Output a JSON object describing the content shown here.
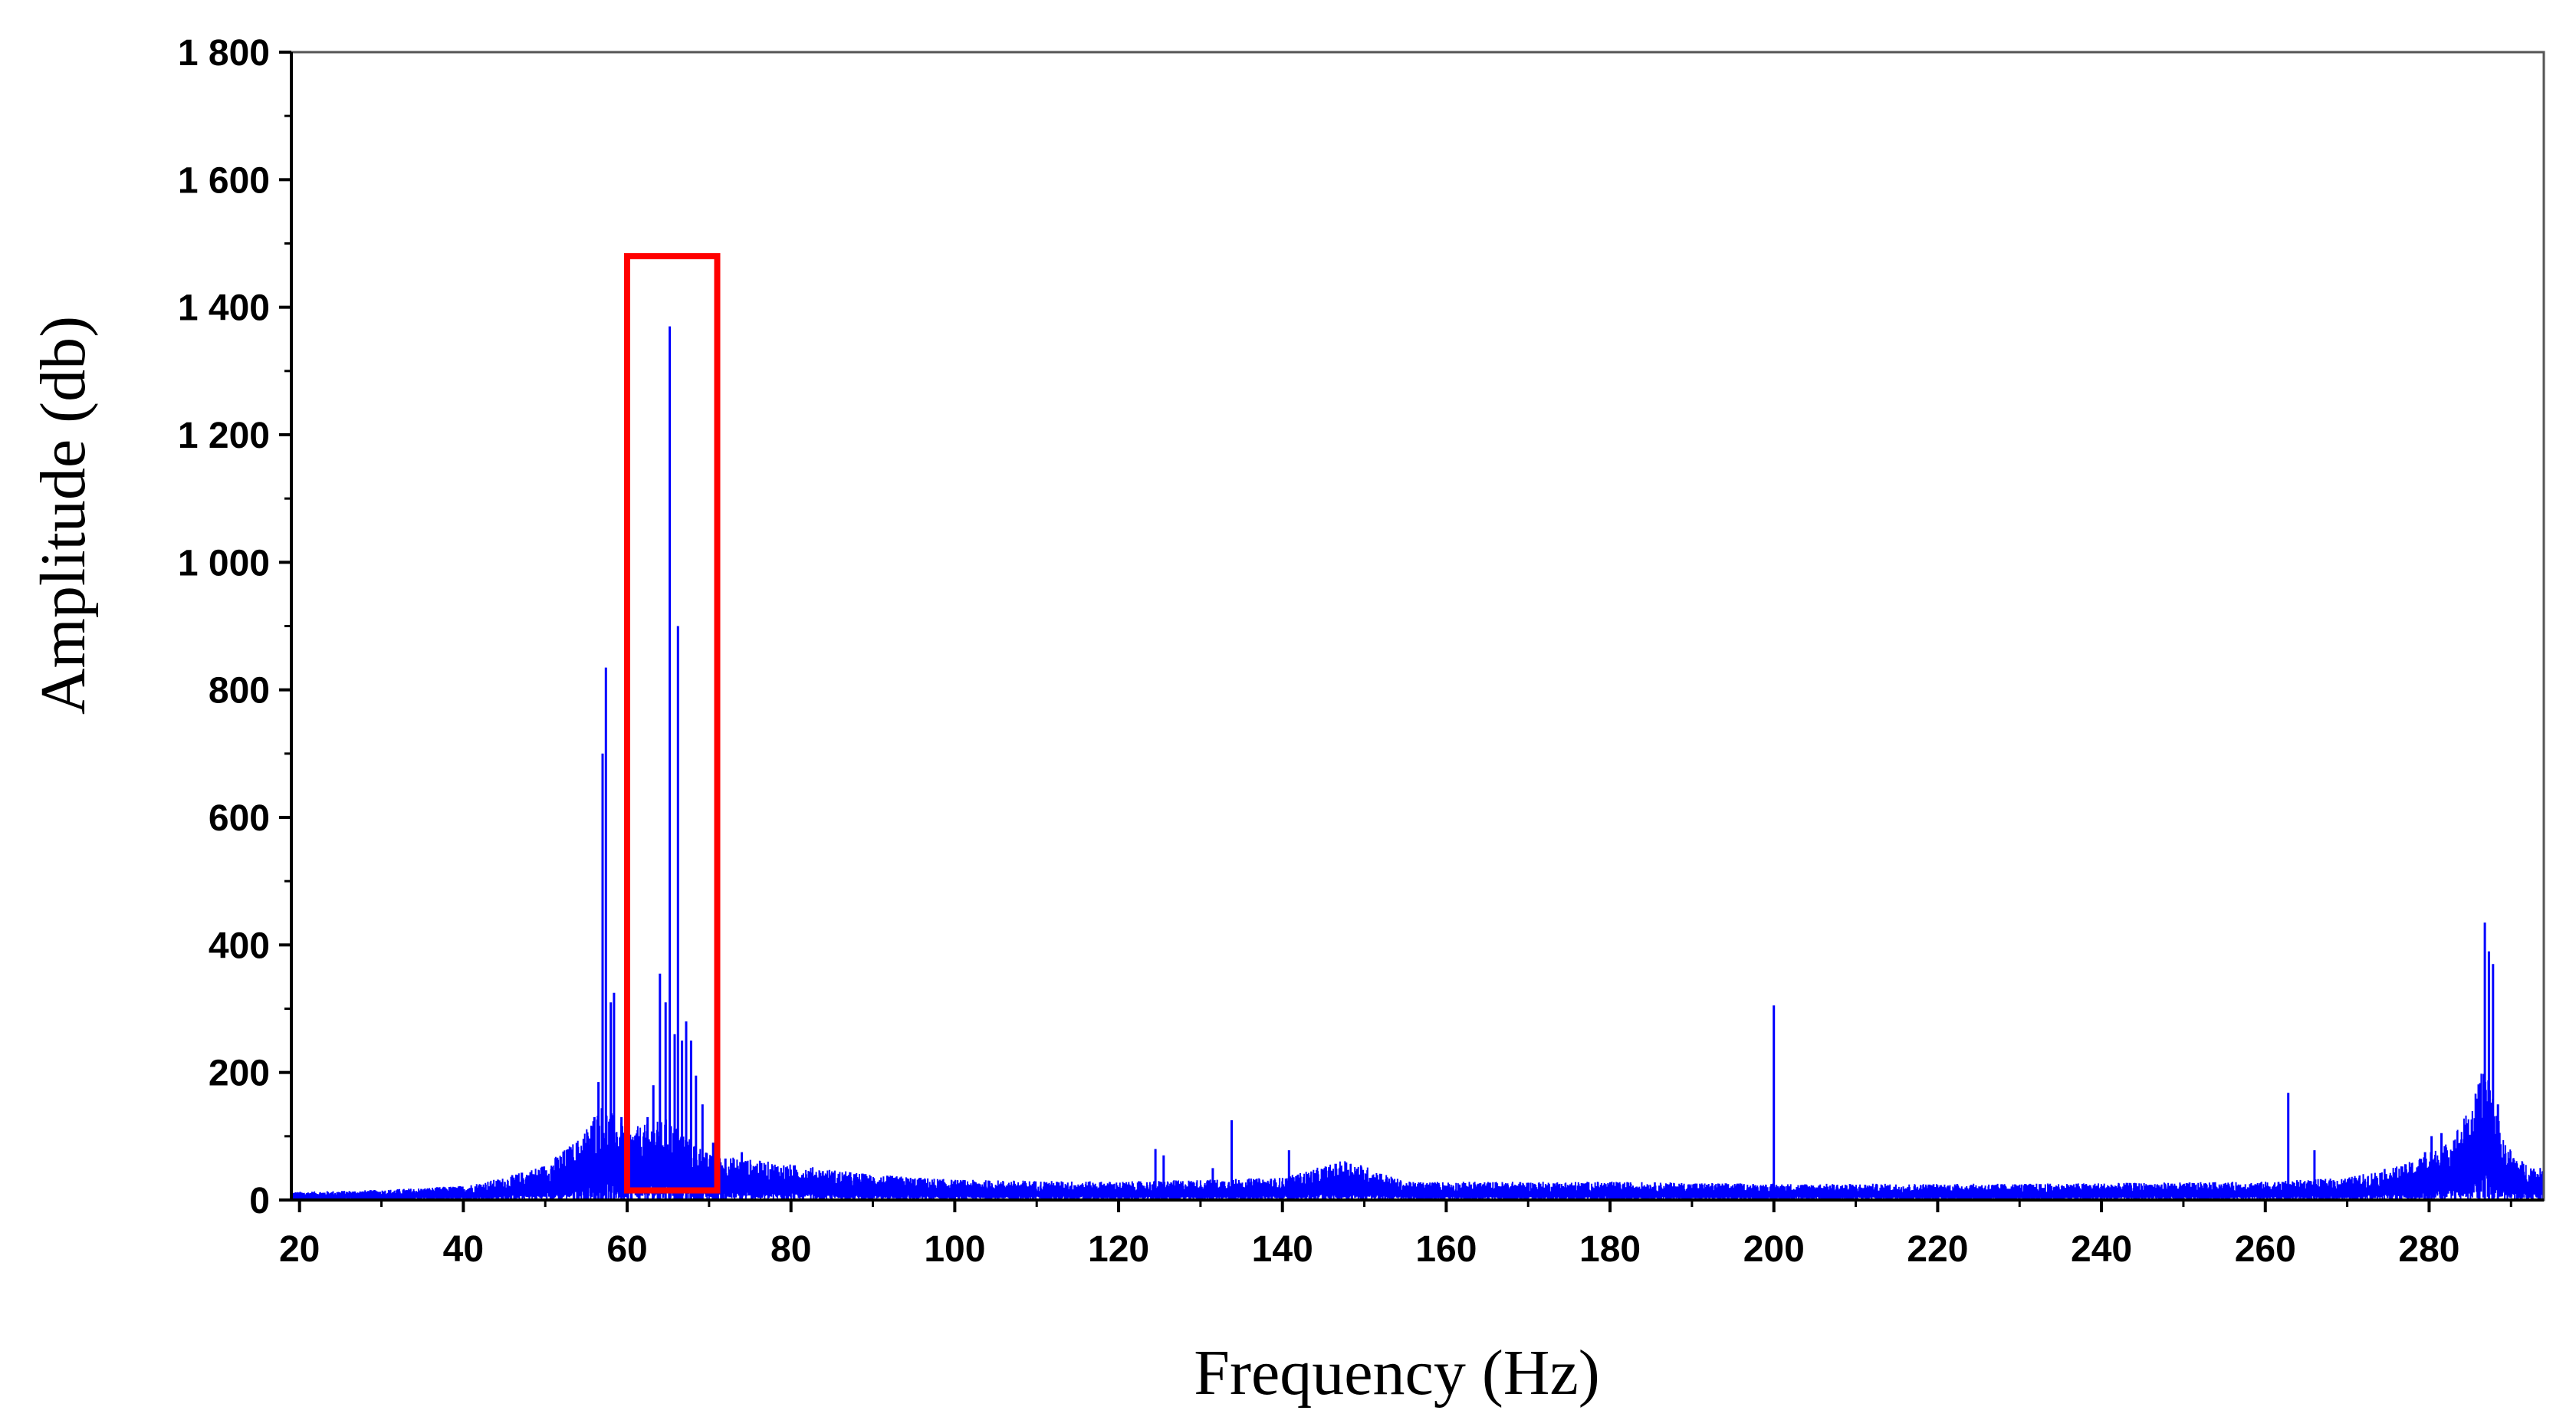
{
  "colors": {
    "series": "#0000ff",
    "highlight": "#ff0000",
    "axis": "#000000",
    "background": "#ffffff"
  },
  "chart_data": {
    "type": "line",
    "title": "",
    "xlabel": "Frequency (Hz)",
    "ylabel": "Amplitude (db)",
    "xlim": [
      19,
      294
    ],
    "ylim": [
      0,
      1800
    ],
    "x_ticks": [
      20,
      40,
      60,
      80,
      100,
      120,
      140,
      160,
      180,
      200,
      220,
      240,
      260,
      280
    ],
    "x_tick_labels": [
      "20",
      "40",
      "60",
      "80",
      "100",
      "120",
      "140",
      "160",
      "180",
      "200",
      "220",
      "240",
      "260",
      "280"
    ],
    "y_ticks": [
      0,
      200,
      400,
      600,
      800,
      1000,
      1200,
      1400,
      1600,
      1800
    ],
    "y_tick_labels": [
      "0",
      "200",
      "400",
      "600",
      "800",
      "1 000",
      "1 200",
      "1 400",
      "1 600",
      "1 800"
    ],
    "grid": false,
    "legend": "none",
    "series": [
      {
        "color": "#0000ff",
        "noise_floor": [
          {
            "x": 19,
            "y": 8
          },
          {
            "x": 30,
            "y": 10
          },
          {
            "x": 40,
            "y": 14
          },
          {
            "x": 45,
            "y": 22
          },
          {
            "x": 50,
            "y": 35
          },
          {
            "x": 54,
            "y": 60
          },
          {
            "x": 57,
            "y": 95
          },
          {
            "x": 60,
            "y": 70
          },
          {
            "x": 65,
            "y": 80
          },
          {
            "x": 70,
            "y": 45
          },
          {
            "x": 75,
            "y": 40
          },
          {
            "x": 80,
            "y": 35
          },
          {
            "x": 90,
            "y": 25
          },
          {
            "x": 100,
            "y": 20
          },
          {
            "x": 120,
            "y": 18
          },
          {
            "x": 140,
            "y": 22
          },
          {
            "x": 148,
            "y": 40
          },
          {
            "x": 155,
            "y": 18
          },
          {
            "x": 180,
            "y": 18
          },
          {
            "x": 200,
            "y": 16
          },
          {
            "x": 230,
            "y": 16
          },
          {
            "x": 260,
            "y": 18
          },
          {
            "x": 270,
            "y": 22
          },
          {
            "x": 277,
            "y": 35
          },
          {
            "x": 282,
            "y": 55
          },
          {
            "x": 285,
            "y": 90
          },
          {
            "x": 287,
            "y": 140
          },
          {
            "x": 289,
            "y": 60
          },
          {
            "x": 291,
            "y": 40
          },
          {
            "x": 294,
            "y": 30
          }
        ],
        "peaks": [
          {
            "x": 54.0,
            "y": 70
          },
          {
            "x": 55.2,
            "y": 100
          },
          {
            "x": 56.0,
            "y": 130
          },
          {
            "x": 56.5,
            "y": 185
          },
          {
            "x": 57.0,
            "y": 700
          },
          {
            "x": 57.4,
            "y": 835
          },
          {
            "x": 58.0,
            "y": 310
          },
          {
            "x": 58.4,
            "y": 325
          },
          {
            "x": 59.3,
            "y": 130
          },
          {
            "x": 60.5,
            "y": 60
          },
          {
            "x": 61.5,
            "y": 100
          },
          {
            "x": 62.5,
            "y": 130
          },
          {
            "x": 63.2,
            "y": 180
          },
          {
            "x": 64.0,
            "y": 355
          },
          {
            "x": 64.7,
            "y": 310
          },
          {
            "x": 65.2,
            "y": 1370
          },
          {
            "x": 65.8,
            "y": 260
          },
          {
            "x": 66.2,
            "y": 900
          },
          {
            "x": 66.7,
            "y": 250
          },
          {
            "x": 67.2,
            "y": 280
          },
          {
            "x": 67.8,
            "y": 250
          },
          {
            "x": 68.4,
            "y": 195
          },
          {
            "x": 69.2,
            "y": 150
          },
          {
            "x": 70.5,
            "y": 90
          },
          {
            "x": 72.0,
            "y": 65
          },
          {
            "x": 74.0,
            "y": 75
          },
          {
            "x": 124.5,
            "y": 80
          },
          {
            "x": 125.5,
            "y": 70
          },
          {
            "x": 131.5,
            "y": 50
          },
          {
            "x": 133.8,
            "y": 125
          },
          {
            "x": 140.8,
            "y": 78
          },
          {
            "x": 200.0,
            "y": 305
          },
          {
            "x": 262.8,
            "y": 168
          },
          {
            "x": 266.0,
            "y": 78
          },
          {
            "x": 279.5,
            "y": 75
          },
          {
            "x": 280.3,
            "y": 100
          },
          {
            "x": 281.5,
            "y": 105
          },
          {
            "x": 286.8,
            "y": 435
          },
          {
            "x": 287.3,
            "y": 390
          },
          {
            "x": 287.8,
            "y": 370
          },
          {
            "x": 288.4,
            "y": 150
          }
        ]
      }
    ],
    "highlight_box": {
      "x0": 60.0,
      "x1": 71.0,
      "y0": 15,
      "y1": 1480,
      "color": "#ff0000"
    }
  }
}
